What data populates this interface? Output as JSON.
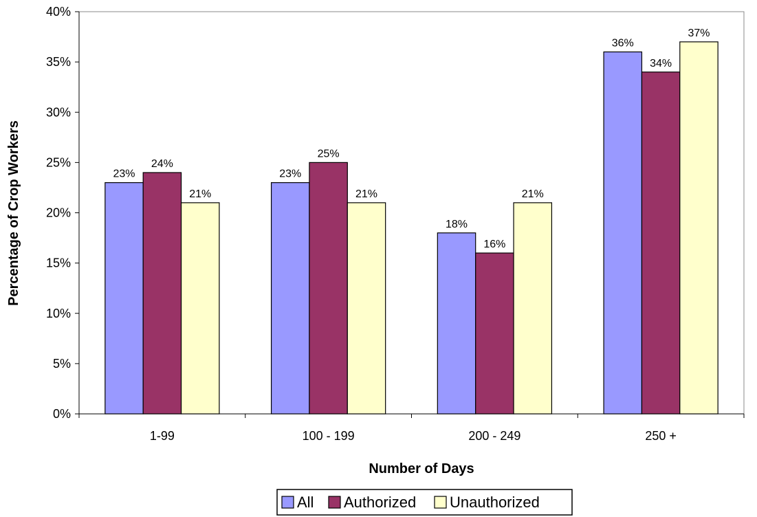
{
  "chart_data": {
    "type": "bar",
    "title": "",
    "xlabel": "Number of Days",
    "ylabel": "Percentage of Crop Workers",
    "categories": [
      "1-99",
      "100 - 199",
      "200 - 249",
      "250 +"
    ],
    "series": [
      {
        "name": "All",
        "values": [
          23,
          23,
          18,
          36
        ],
        "color": "#9999ff"
      },
      {
        "name": "Authorized",
        "values": [
          24,
          25,
          16,
          34
        ],
        "color": "#993366"
      },
      {
        "name": "Unauthorized",
        "values": [
          21,
          21,
          21,
          37
        ],
        "color": "#ffffcc"
      }
    ],
    "ylim": [
      0,
      40
    ],
    "yticks": [
      "0%",
      "5%",
      "10%",
      "15%",
      "20%",
      "25%",
      "30%",
      "35%",
      "40%"
    ],
    "value_suffix": "%",
    "grid": false,
    "legend_position": "bottom"
  }
}
